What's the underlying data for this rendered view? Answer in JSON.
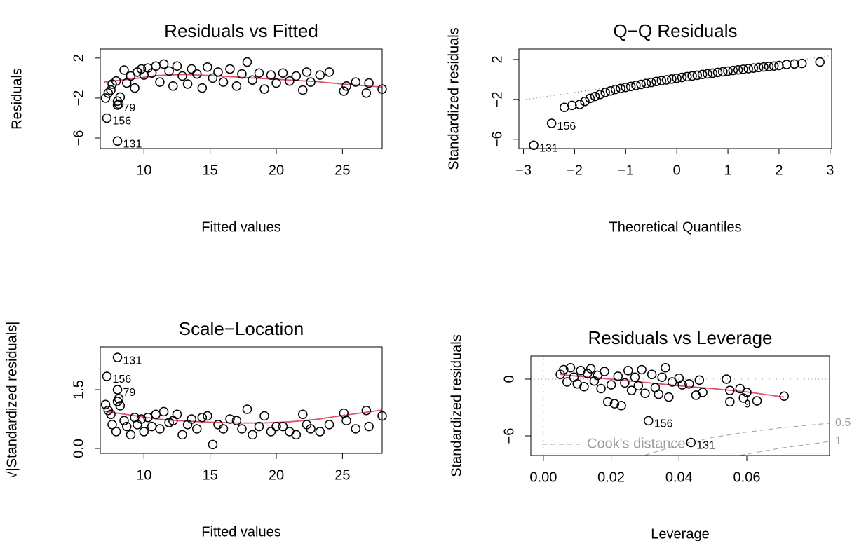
{
  "chart_data": [
    {
      "type": "scatter",
      "title": "Residuals vs Fitted",
      "x_label": "Fitted values",
      "y_label": "Residuals",
      "xlim": [
        6.7,
        28.0
      ],
      "ylim": [
        -7.05,
        2.9
      ],
      "xticks": [
        10,
        15,
        20,
        25
      ],
      "yticks": [
        {
          "value": -6,
          "label": "−6"
        },
        {
          "value": -2,
          "label": "−2"
        },
        2
      ],
      "hline": 0,
      "point_color": "#000000",
      "points": {
        "x": [
          7.1,
          7.3,
          7.5,
          7.6,
          7.9,
          8.0,
          8.1,
          8.2,
          8.5,
          8.7,
          9.0,
          9.3,
          9.5,
          9.8,
          10.0,
          10.3,
          10.6,
          10.9,
          11.2,
          11.5,
          11.9,
          12.2,
          12.5,
          12.9,
          13.3,
          13.6,
          14.0,
          14.4,
          14.8,
          15.2,
          15.6,
          16.0,
          16.5,
          17.0,
          17.4,
          17.8,
          18.2,
          18.7,
          19.1,
          19.6,
          20.0,
          20.5,
          21.0,
          21.5,
          22.0,
          22.3,
          22.6,
          23.3,
          24.0,
          25.1,
          25.3,
          26.0,
          26.8,
          27.0,
          28.0
        ],
        "values": [
          -2.0,
          -1.5,
          -1.2,
          -0.6,
          -0.3,
          -2.3,
          -2.6,
          -1.9,
          0.8,
          -0.5,
          0.2,
          -1.0,
          0.6,
          0.9,
          0.3,
          1.0,
          0.5,
          1.2,
          -0.4,
          1.4,
          0.7,
          -0.8,
          1.2,
          0.2,
          -0.6,
          0.9,
          0.4,
          -1.0,
          1.1,
          0.0,
          0.6,
          -0.4,
          0.9,
          -0.8,
          0.4,
          1.6,
          -0.2,
          0.5,
          -1.1,
          0.3,
          -0.5,
          0.5,
          -0.3,
          0.2,
          -1.2,
          0.6,
          -0.4,
          0.3,
          0.6,
          -1.3,
          -0.8,
          -0.4,
          -1.5,
          -0.5,
          -1.1
        ]
      },
      "labeled_points": {
        "x": [
          8.0,
          7.2,
          8.0
        ],
        "values": [
          -2.7,
          -4.0,
          -6.3
        ],
        "labels": [
          "79",
          "156",
          "131"
        ]
      },
      "smooth": {
        "color": "#DF536B",
        "x": [
          7,
          9,
          11,
          13,
          15,
          17,
          19,
          21,
          23,
          25,
          28
        ],
        "values": [
          -0.4,
          -0.1,
          0.25,
          0.35,
          0.25,
          0.1,
          -0.05,
          -0.2,
          -0.35,
          -0.6,
          -0.9
        ]
      }
    },
    {
      "type": "scatter",
      "title": "Q−Q Residuals",
      "x_label": "Theoretical Quantiles",
      "y_label": "Standardized residuals",
      "xlim": [
        -3.09,
        3.03
      ],
      "ylim": [
        -6.93,
        3.05
      ],
      "xticks": [
        {
          "value": -3,
          "label": "−3"
        },
        {
          "value": -2,
          "label": "−2"
        },
        {
          "value": -1,
          "label": "−1"
        },
        0,
        1,
        2,
        3
      ],
      "yticks": [
        {
          "value": -6,
          "label": "−6"
        },
        {
          "value": -2,
          "label": "−2"
        },
        2
      ],
      "point_color": "#000000",
      "reference_line": {
        "x": [
          -3.09,
          3.03
        ],
        "values": [
          -2.1,
          2.4
        ]
      },
      "points": {
        "x": [
          -2.2,
          -2.05,
          -1.9,
          -1.8,
          -1.7,
          -1.6,
          -1.5,
          -1.4,
          -1.3,
          -1.2,
          -1.1,
          -1.0,
          -0.9,
          -0.8,
          -0.7,
          -0.6,
          -0.5,
          -0.4,
          -0.3,
          -0.2,
          -0.1,
          0,
          0.1,
          0.2,
          0.3,
          0.4,
          0.5,
          0.6,
          0.7,
          0.8,
          0.9,
          1.0,
          1.1,
          1.2,
          1.3,
          1.4,
          1.5,
          1.6,
          1.7,
          1.8,
          1.9,
          2.0,
          2.15,
          2.3,
          2.45,
          2.8
        ],
        "values": [
          -2.8,
          -2.6,
          -2.5,
          -2.2,
          -1.9,
          -1.7,
          -1.5,
          -1.3,
          -1.15,
          -1.0,
          -0.9,
          -0.8,
          -0.7,
          -0.6,
          -0.5,
          -0.4,
          -0.3,
          -0.2,
          -0.12,
          -0.04,
          0.04,
          0.12,
          0.2,
          0.28,
          0.35,
          0.42,
          0.5,
          0.56,
          0.63,
          0.7,
          0.77,
          0.84,
          0.9,
          0.96,
          1.02,
          1.08,
          1.14,
          1.2,
          1.25,
          1.3,
          1.35,
          1.4,
          1.5,
          1.55,
          1.6,
          1.75
        ]
      },
      "labeled_points": {
        "x": [
          -2.45,
          -2.8
        ],
        "values": [
          -4.4,
          -6.6
        ],
        "labels": [
          "156",
          "131"
        ]
      }
    },
    {
      "type": "scatter",
      "title": "Scale−Location",
      "x_label": "Fitted values",
      "y_label": "√|Standardized residuals|",
      "xlim": [
        6.7,
        28.0
      ],
      "ylim": [
        -0.125,
        2.59
      ],
      "xticks": [
        10,
        15,
        20,
        25
      ],
      "yticks": [
        {
          "value": 0,
          "label": "0.0"
        },
        1.5
      ],
      "point_color": "#000000",
      "points": {
        "x": [
          7.1,
          7.3,
          7.5,
          7.6,
          7.9,
          8.0,
          8.1,
          8.2,
          8.5,
          8.7,
          9.0,
          9.3,
          9.5,
          9.8,
          10.0,
          10.3,
          10.6,
          10.9,
          11.2,
          11.5,
          11.9,
          12.2,
          12.5,
          12.9,
          13.3,
          13.6,
          14.0,
          14.4,
          14.8,
          15.2,
          15.6,
          16.0,
          16.5,
          17.0,
          17.4,
          17.8,
          18.2,
          18.7,
          19.1,
          19.6,
          20.0,
          20.5,
          21.0,
          21.5,
          22.0,
          22.3,
          22.6,
          23.3,
          24.0,
          25.1,
          25.3,
          26.0,
          26.8,
          27.0,
          28.0
        ],
        "values": [
          1.12,
          0.97,
          0.87,
          0.61,
          0.43,
          1.2,
          1.27,
          1.09,
          0.71,
          0.56,
          0.35,
          0.79,
          0.61,
          0.75,
          0.43,
          0.79,
          0.56,
          0.87,
          0.5,
          0.94,
          0.66,
          0.71,
          0.87,
          0.35,
          0.61,
          0.75,
          0.5,
          0.79,
          0.83,
          0.1,
          0.61,
          0.5,
          0.75,
          0.71,
          0.5,
          1.0,
          0.35,
          0.56,
          0.83,
          0.43,
          0.56,
          0.56,
          0.43,
          0.35,
          0.87,
          0.61,
          0.5,
          0.43,
          0.61,
          0.9,
          0.71,
          0.5,
          0.97,
          0.56,
          0.83
        ]
      },
      "labeled_points": {
        "x": [
          8.0,
          7.2,
          8.0
        ],
        "values": [
          1.5,
          1.84,
          2.32
        ],
        "labels": [
          "79",
          "156",
          "131"
        ]
      },
      "smooth": {
        "color": "#DF536B",
        "x": [
          7,
          9,
          11,
          13,
          15,
          17,
          19,
          21,
          23,
          25,
          28
        ],
        "values": [
          0.95,
          0.85,
          0.75,
          0.7,
          0.67,
          0.65,
          0.65,
          0.68,
          0.74,
          0.84,
          0.98
        ]
      }
    },
    {
      "type": "scatter",
      "title": "Residuals vs Leverage",
      "x_label": "Leverage",
      "y_label": "Standardized residuals",
      "xlim": [
        -0.0037,
        0.0844
      ],
      "ylim": [
        -8.07,
        2.44
      ],
      "xticks": [
        {
          "value": 0,
          "label": "0.00"
        },
        0.02,
        0.04,
        0.06
      ],
      "yticks": [
        {
          "value": -6,
          "label": "−6"
        },
        0
      ],
      "hline": 0,
      "vline": 0,
      "point_color": "#000000",
      "legend": "Cook's distance",
      "reference_series": [
        {
          "name": "0.5",
          "color": "#9E9E9E",
          "x": [
            0.03,
            0.04,
            0.05,
            0.06,
            0.07,
            0.0844
          ],
          "values": [
            -8.04,
            -6.93,
            -6.16,
            -5.6,
            -5.15,
            -4.66
          ]
        },
        {
          "name": "1",
          "color": "#9E9E9E",
          "x": [
            0.058,
            0.06,
            0.07,
            0.0844
          ],
          "values": [
            -8.06,
            -7.92,
            -7.29,
            -6.59
          ]
        }
      ],
      "points": {
        "x": [
          0.005,
          0.006,
          0.007,
          0.008,
          0.009,
          0.01,
          0.011,
          0.012,
          0.013,
          0.014,
          0.015,
          0.016,
          0.017,
          0.018,
          0.019,
          0.02,
          0.021,
          0.022,
          0.023,
          0.024,
          0.025,
          0.026,
          0.027,
          0.028,
          0.029,
          0.03,
          0.032,
          0.033,
          0.034,
          0.035,
          0.036,
          0.037,
          0.038,
          0.04,
          0.041,
          0.043,
          0.045,
          0.046,
          0.047,
          0.054,
          0.055,
          0.055,
          0.058,
          0.059,
          0.06,
          0.071
        ],
        "values": [
          0.5,
          1.0,
          -0.3,
          1.2,
          0.2,
          -0.5,
          0.9,
          -0.8,
          0.6,
          1.1,
          -0.2,
          0.4,
          -1.0,
          0.8,
          -2.4,
          -0.6,
          -2.6,
          0.3,
          -2.8,
          -0.4,
          0.9,
          -1.2,
          0.2,
          -0.7,
          1.0,
          -1.5,
          0.5,
          -0.9,
          -1.6,
          0.2,
          1.2,
          -1.9,
          -0.3,
          0.1,
          -0.6,
          -0.5,
          -1.7,
          -0.1,
          -1.4,
          0.0,
          -2.4,
          -1.2,
          -1.0,
          -2.0,
          -1.4,
          -1.8
        ]
      },
      "labeled_points": {
        "x": [
          0.031,
          0.0435,
          0.063
        ],
        "values": [
          -4.4,
          -6.7,
          -2.3
        ],
        "labels": [
          "156",
          "131",
          "9"
        ]
      },
      "smooth": {
        "color": "#DF536B",
        "x": [
          0.005,
          0.01,
          0.02,
          0.03,
          0.04,
          0.05,
          0.06,
          0.071
        ],
        "values": [
          0.5,
          0.3,
          0,
          -0.35,
          -0.7,
          -1.0,
          -1.35,
          -1.9
        ]
      }
    }
  ]
}
